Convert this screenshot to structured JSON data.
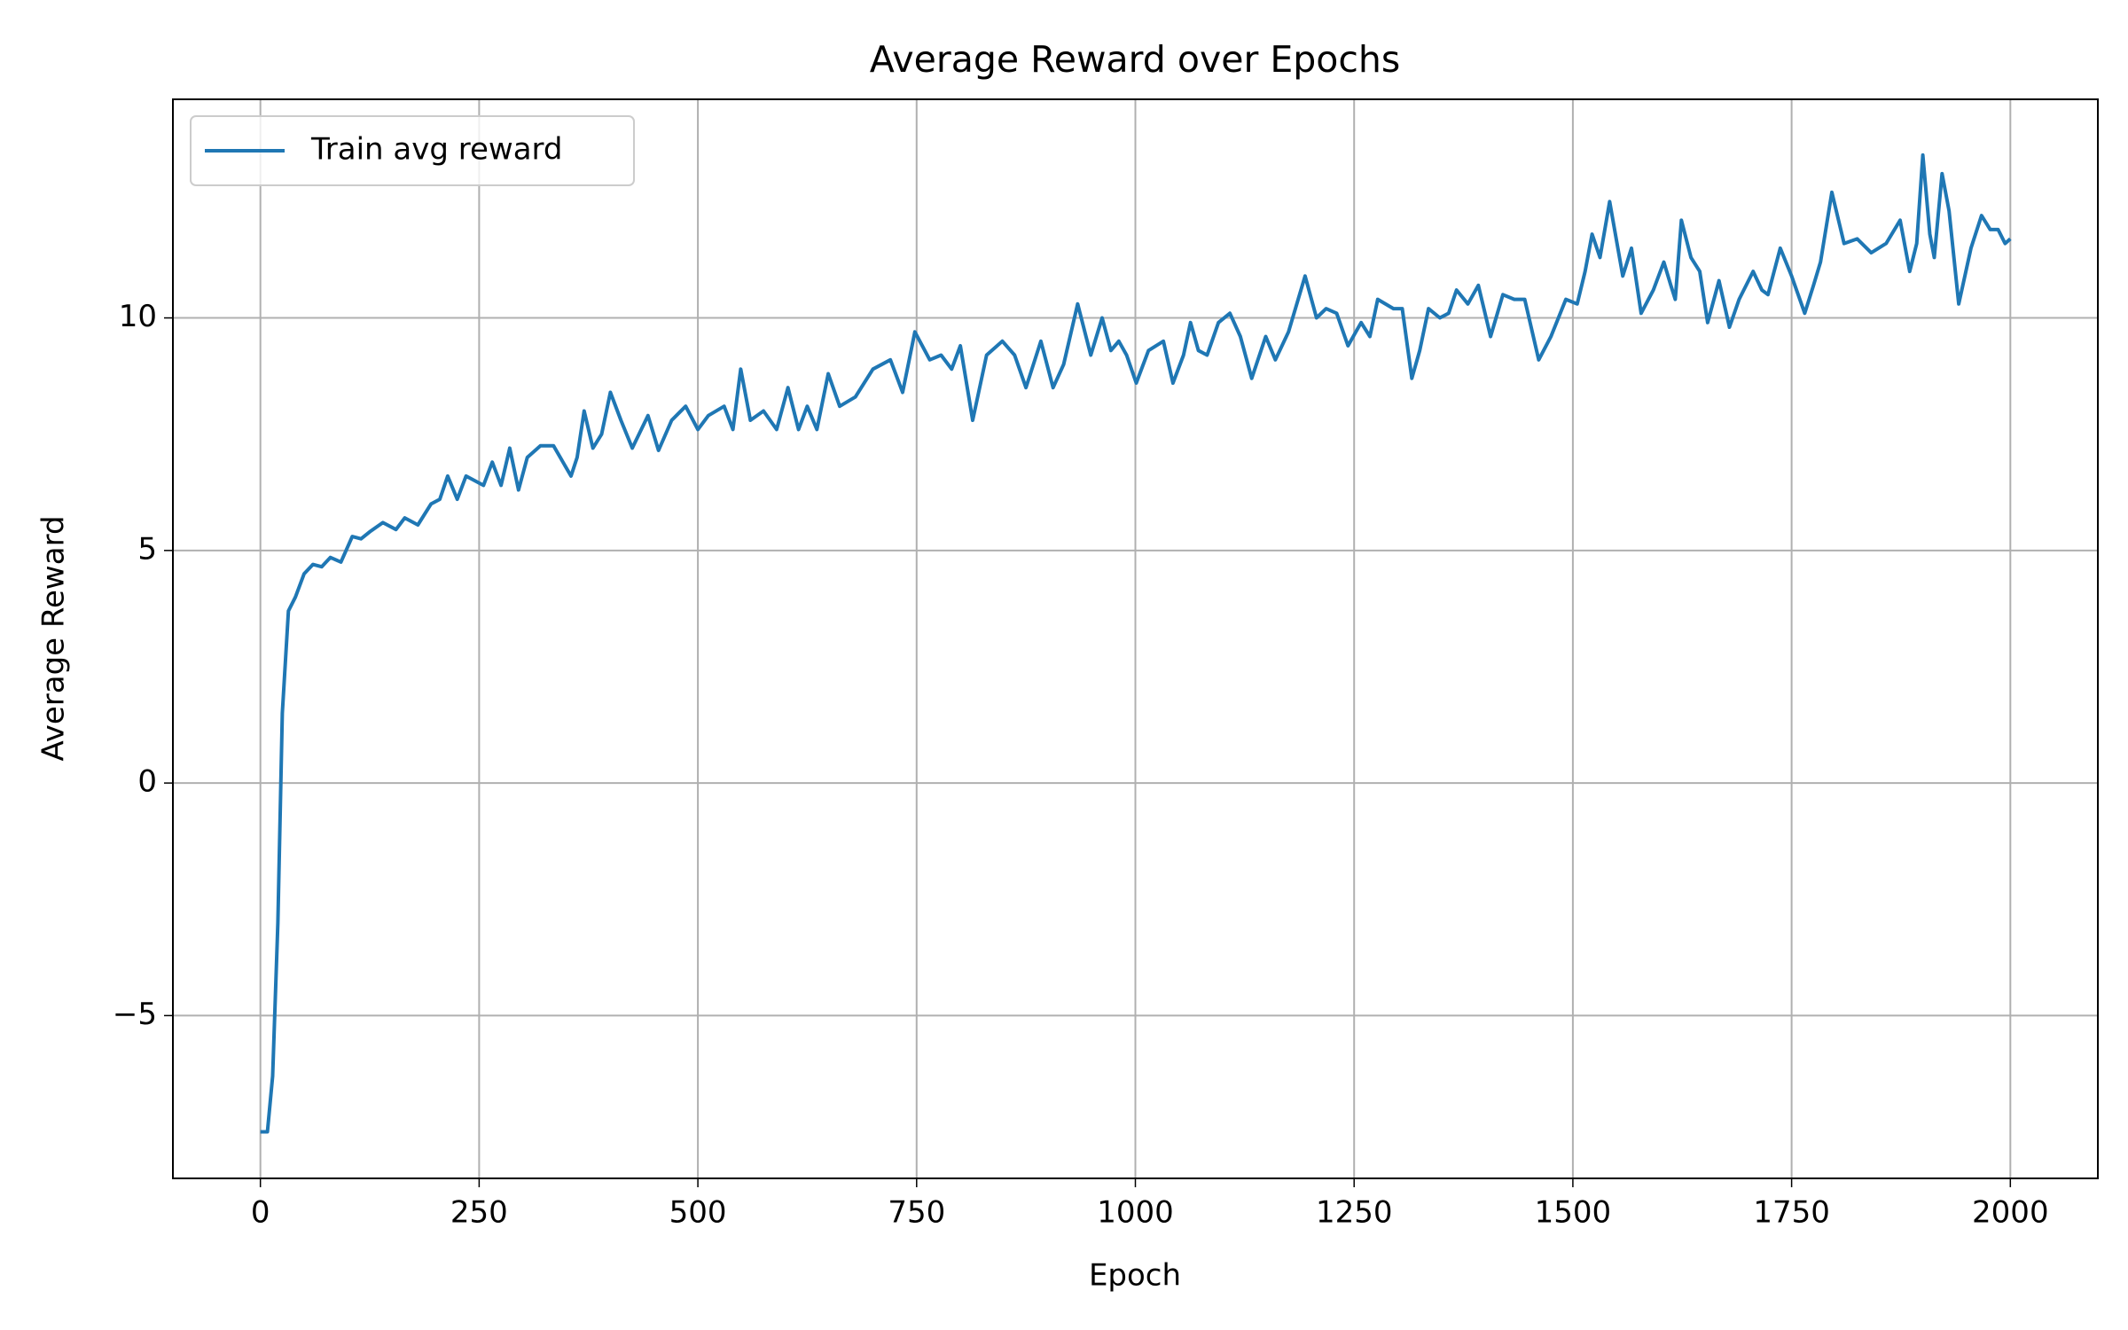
{
  "chart_data": {
    "type": "line",
    "title": "Average Reward over Epochs",
    "xlabel": "Epoch",
    "ylabel": "Average Reward",
    "x": [
      0,
      8,
      14,
      20,
      25,
      32,
      40,
      50,
      60,
      70,
      80,
      92,
      105,
      115,
      125,
      140,
      155,
      165,
      180,
      195,
      205,
      214,
      225,
      235,
      255,
      265,
      275,
      285,
      295,
      305,
      320,
      335,
      355,
      362,
      370,
      380,
      390,
      400,
      412,
      425,
      443,
      455,
      470,
      486,
      500,
      512,
      530,
      540,
      549,
      560,
      575,
      590,
      603,
      615,
      625,
      636,
      649,
      662,
      680,
      700,
      720,
      734,
      748,
      765,
      778,
      790,
      800,
      814,
      830,
      848,
      862,
      875,
      892,
      906,
      918,
      934,
      949,
      962,
      972,
      981,
      990,
      1001,
      1015,
      1032,
      1043,
      1055,
      1063,
      1072,
      1082,
      1095,
      1108,
      1120,
      1133,
      1149,
      1160,
      1175,
      1194,
      1207,
      1218,
      1230,
      1243,
      1258,
      1268,
      1277,
      1295,
      1305,
      1316,
      1325,
      1335,
      1348,
      1358,
      1367,
      1380,
      1392,
      1406,
      1420,
      1433,
      1445,
      1461,
      1475,
      1492,
      1505,
      1514,
      1522,
      1531,
      1542,
      1557,
      1567,
      1578,
      1592,
      1604,
      1612,
      1617,
      1624,
      1635,
      1645,
      1654,
      1667,
      1679,
      1690,
      1706,
      1716,
      1723,
      1737,
      1750,
      1765,
      1775,
      1783,
      1796,
      1810,
      1825,
      1841,
      1858,
      1874,
      1885,
      1893,
      1900,
      1908,
      1913,
      1922,
      1930,
      1941,
      1955,
      1967,
      1977,
      1986,
      1994,
      2000
    ],
    "series": [
      {
        "name": "Train avg reward",
        "color": "#1f77b4",
        "values": [
          -7.5,
          -7.5,
          -6.3,
          -3.0,
          1.5,
          3.7,
          4.0,
          4.5,
          4.7,
          4.65,
          4.85,
          4.75,
          5.3,
          5.25,
          5.4,
          5.6,
          5.45,
          5.7,
          5.55,
          6.0,
          6.1,
          6.6,
          6.1,
          6.6,
          6.4,
          6.9,
          6.4,
          7.2,
          6.3,
          7.0,
          7.25,
          7.25,
          6.6,
          7.0,
          8.0,
          7.2,
          7.5,
          8.4,
          7.8,
          7.2,
          7.9,
          7.15,
          7.8,
          8.1,
          7.6,
          7.9,
          8.1,
          7.6,
          8.9,
          7.8,
          8.0,
          7.6,
          8.5,
          7.6,
          8.1,
          7.6,
          8.8,
          8.1,
          8.3,
          8.9,
          9.1,
          8.4,
          9.7,
          9.1,
          9.2,
          8.9,
          9.4,
          7.8,
          9.2,
          9.5,
          9.2,
          8.5,
          9.5,
          8.5,
          9.0,
          10.3,
          9.2,
          10.0,
          9.3,
          9.5,
          9.2,
          8.6,
          9.3,
          9.5,
          8.6,
          9.2,
          9.9,
          9.3,
          9.2,
          9.9,
          10.1,
          9.6,
          8.7,
          9.6,
          9.1,
          9.7,
          10.9,
          10.0,
          10.2,
          10.1,
          9.4,
          9.9,
          9.6,
          10.4,
          10.2,
          10.2,
          8.7,
          9.3,
          10.2,
          10.0,
          10.1,
          10.6,
          10.3,
          10.7,
          9.6,
          10.5,
          10.4,
          10.4,
          9.1,
          9.6,
          10.4,
          10.3,
          11.0,
          11.8,
          11.3,
          12.5,
          10.9,
          11.5,
          10.1,
          10.6,
          11.2,
          10.7,
          10.4,
          12.1,
          11.3,
          11.0,
          9.9,
          10.8,
          9.8,
          10.4,
          11.0,
          10.6,
          10.5,
          11.5,
          10.9,
          10.1,
          10.7,
          11.2,
          12.7,
          11.6,
          11.7,
          11.4,
          11.6,
          12.1,
          11.0,
          11.6,
          13.5,
          11.8,
          11.3,
          13.1,
          12.3,
          10.3,
          11.5,
          12.2,
          11.9,
          11.9,
          11.6,
          11.7
        ]
      }
    ],
    "xlim": [
      -100,
      2100
    ],
    "ylim": [
      -8.5,
      14.7
    ],
    "xticks": [
      0,
      250,
      500,
      750,
      1000,
      1250,
      1500,
      1750,
      2000
    ],
    "yticks": [
      {
        "value": -5,
        "label": "−5"
      },
      0,
      5,
      10
    ],
    "grid": true,
    "legend": "upper left"
  }
}
